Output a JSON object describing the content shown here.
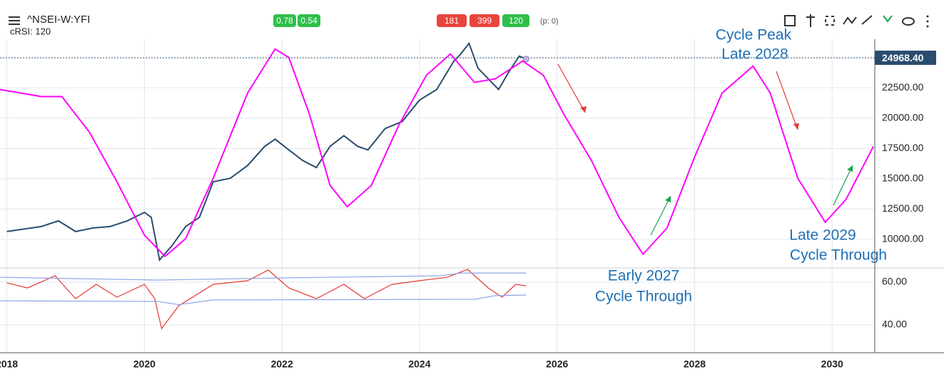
{
  "header": {
    "symbol": "^NSEI-W:YFI",
    "indicator": "cRSI: 120",
    "badges": [
      {
        "text": "0.78",
        "color": "#2fbf4a"
      },
      {
        "text": "0.54",
        "color": "#2fbf4a"
      },
      {
        "text": "181",
        "color": "#e8453c"
      },
      {
        "text": "399",
        "color": "#e8453c"
      },
      {
        "text": "120",
        "color": "#2fbf4a"
      }
    ],
    "p_label": "(p: 0)"
  },
  "chart_data": [
    {
      "type": "line",
      "xlim": [
        2017.9,
        2030.62
      ],
      "xticks": [
        2018,
        2020,
        2022,
        2024,
        2026,
        2028,
        2030
      ],
      "ylim": [
        7700,
        26500
      ],
      "yticks": [
        {
          "value": 10000,
          "label": "10000.00"
        },
        {
          "value": 12500,
          "label": "12500.00"
        },
        {
          "value": 15000,
          "label": "15000.00"
        },
        {
          "value": 17500,
          "label": "17500.00"
        },
        {
          "value": 20000,
          "label": "20000.00"
        },
        {
          "value": 22500,
          "label": "22500.00"
        }
      ],
      "grid": true,
      "last_value": {
        "value": 24968.4,
        "label": "24968.40"
      },
      "series": [
        {
          "color": "#2a4d6e",
          "x": [
            2018.0,
            2018.5,
            2018.75,
            2019.0,
            2019.25,
            2019.5,
            2019.75,
            2020.0,
            2020.1,
            2020.22,
            2020.4,
            2020.6,
            2020.8,
            2021.0,
            2021.25,
            2021.5,
            2021.75,
            2021.9,
            2022.1,
            2022.3,
            2022.5,
            2022.7,
            2022.9,
            2023.1,
            2023.25,
            2023.5,
            2023.75,
            2024.0,
            2024.25,
            2024.5,
            2024.6,
            2024.72,
            2024.85,
            2025.0,
            2025.15,
            2025.3,
            2025.45,
            2025.55
          ],
          "values": [
            10644,
            11054,
            11522,
            10644,
            10937,
            11054,
            11522,
            12225,
            11815,
            8300,
            9473,
            11054,
            11815,
            14743,
            15035,
            16089,
            17670,
            18255,
            17377,
            16499,
            15914,
            17670,
            18548,
            17670,
            17377,
            19133,
            19719,
            21476,
            22354,
            24696,
            25282,
            26160,
            24110,
            23232,
            22354,
            23817,
            25106,
            24871
          ]
        },
        {
          "color": "#ff00ff",
          "x": [
            2017.9,
            2018.5,
            2018.8,
            2019.2,
            2019.6,
            2020.0,
            2020.3,
            2020.6,
            2021.0,
            2021.5,
            2021.9,
            2022.1,
            2022.4,
            2022.7,
            2022.95,
            2023.3,
            2023.7,
            2024.1,
            2024.45,
            2024.8,
            2025.1,
            2025.5,
            2025.8,
            2026.1,
            2026.5,
            2026.9,
            2027.25,
            2027.6,
            2028.0,
            2028.4,
            2028.85,
            2029.1,
            2029.5,
            2029.9,
            2030.2,
            2030.6
          ],
          "values": [
            22354,
            21769,
            21769,
            18840,
            14743,
            10351,
            8595,
            10058,
            15035,
            22061,
            25691,
            24989,
            20305,
            14450,
            12693,
            14450,
            19426,
            23525,
            25282,
            22940,
            23232,
            24696,
            23525,
            20305,
            16499,
            11815,
            8770,
            10937,
            16792,
            22061,
            24286,
            22061,
            15035,
            11405,
            13278,
            17670
          ]
        }
      ],
      "annotations": [
        "Cycle Peak",
        "Late 2028",
        "Early 2027",
        "Cycle Through",
        "Late 2029",
        "Cycle Through"
      ]
    },
    {
      "type": "line",
      "xlim": [
        2017.9,
        2030.62
      ],
      "ylim": [
        27,
        66
      ],
      "yticks": [
        {
          "value": 40,
          "label": "40.00"
        },
        {
          "value": 60,
          "label": "60.00"
        }
      ],
      "series": [
        {
          "color": "#e53935",
          "x": [
            2018.0,
            2018.3,
            2018.7,
            2019.0,
            2019.3,
            2019.6,
            2020.0,
            2020.15,
            2020.25,
            2020.5,
            2021.0,
            2021.5,
            2021.8,
            2022.1,
            2022.5,
            2022.9,
            2023.2,
            2023.6,
            2024.0,
            2024.4,
            2024.7,
            2025.0,
            2025.2,
            2025.4,
            2025.55
          ],
          "values": [
            59.7,
            57.3,
            63,
            52.3,
            59,
            53,
            59,
            52.3,
            38.3,
            49,
            59,
            60.7,
            65.7,
            57.3,
            52.3,
            59,
            52.3,
            59,
            60.7,
            62.3,
            66,
            57.3,
            53,
            59,
            58.3
          ]
        },
        {
          "color": "#8fa6e8",
          "x": [
            2017.9,
            2020.2,
            2022.0,
            2024.3,
            2024.6,
            2025.55
          ],
          "values": [
            62.3,
            61,
            62,
            63,
            64.3,
            64.3
          ]
        },
        {
          "color": "#8fa6e8",
          "x": [
            2017.9,
            2020.2,
            2020.5,
            2021.0,
            2024.8,
            2025.1,
            2025.55
          ],
          "values": [
            51.3,
            51,
            49.5,
            51.7,
            52,
            53.7,
            54
          ]
        }
      ]
    }
  ]
}
